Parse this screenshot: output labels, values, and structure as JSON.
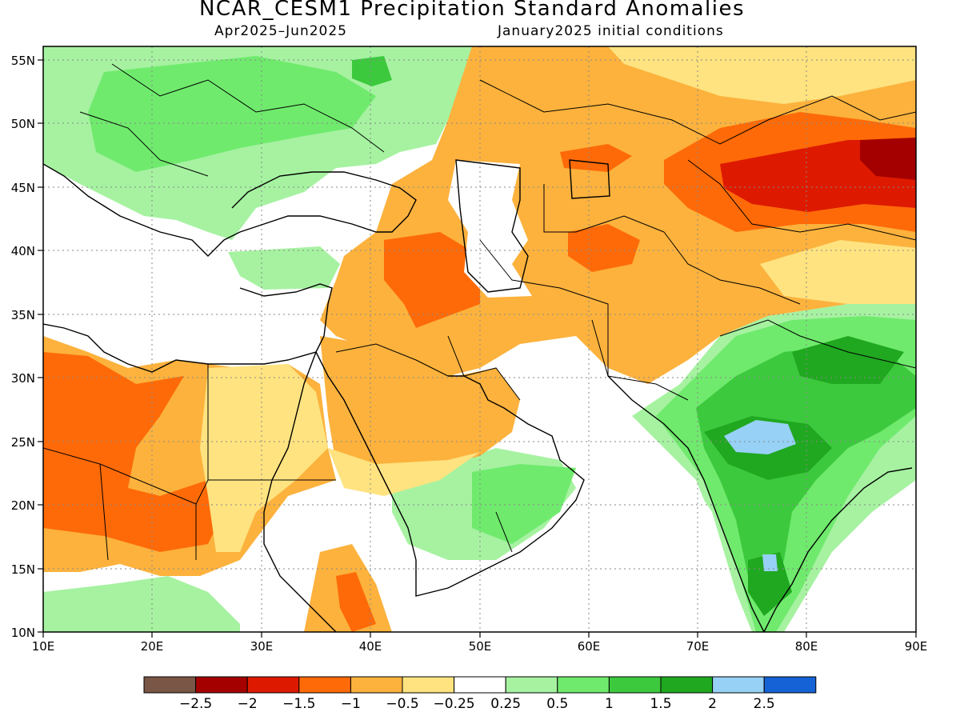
{
  "title": "NCAR_CESM1 Precipitation Standard Anomalies",
  "subtitle_left": "Apr2025–Jun2025",
  "subtitle_right": "January2025 initial conditions",
  "map_extent": {
    "lon_min": 10,
    "lon_max": 90,
    "lat_min": 10,
    "lat_max": 56
  },
  "lon_ticks": [
    "10E",
    "20E",
    "30E",
    "40E",
    "50E",
    "60E",
    "70E",
    "80E",
    "90E"
  ],
  "lat_ticks": [
    "10N",
    "15N",
    "20N",
    "25N",
    "30N",
    "35N",
    "40N",
    "45N",
    "50N",
    "55N"
  ],
  "colorbar": {
    "colors": [
      "#7a5646",
      "#a50000",
      "#dd1a00",
      "#fe6a08",
      "#fcb23d",
      "#fee380",
      "#ffffff",
      "#a6f2a1",
      "#6fea6d",
      "#3dc93e",
      "#20a820",
      "#97d1f6",
      "#1462d5"
    ],
    "labels": [
      "−2.5",
      "−2",
      "−1.5",
      "−1",
      "−0.5",
      "−0.25",
      "0.25",
      "0.5",
      "1",
      "1.5",
      "2",
      "2.5"
    ]
  },
  "palette": {
    "dry2": "#fcb23d",
    "dry1": "#fee380",
    "dry3": "#fe6a08",
    "dry4": "#dd1a00",
    "dry5": "#a50000",
    "wet1": "#a6f2a1",
    "wet2": "#6fea6d",
    "wet3": "#3dc93e",
    "wet4": "#20a820",
    "wet5": "#97d1f6"
  }
}
